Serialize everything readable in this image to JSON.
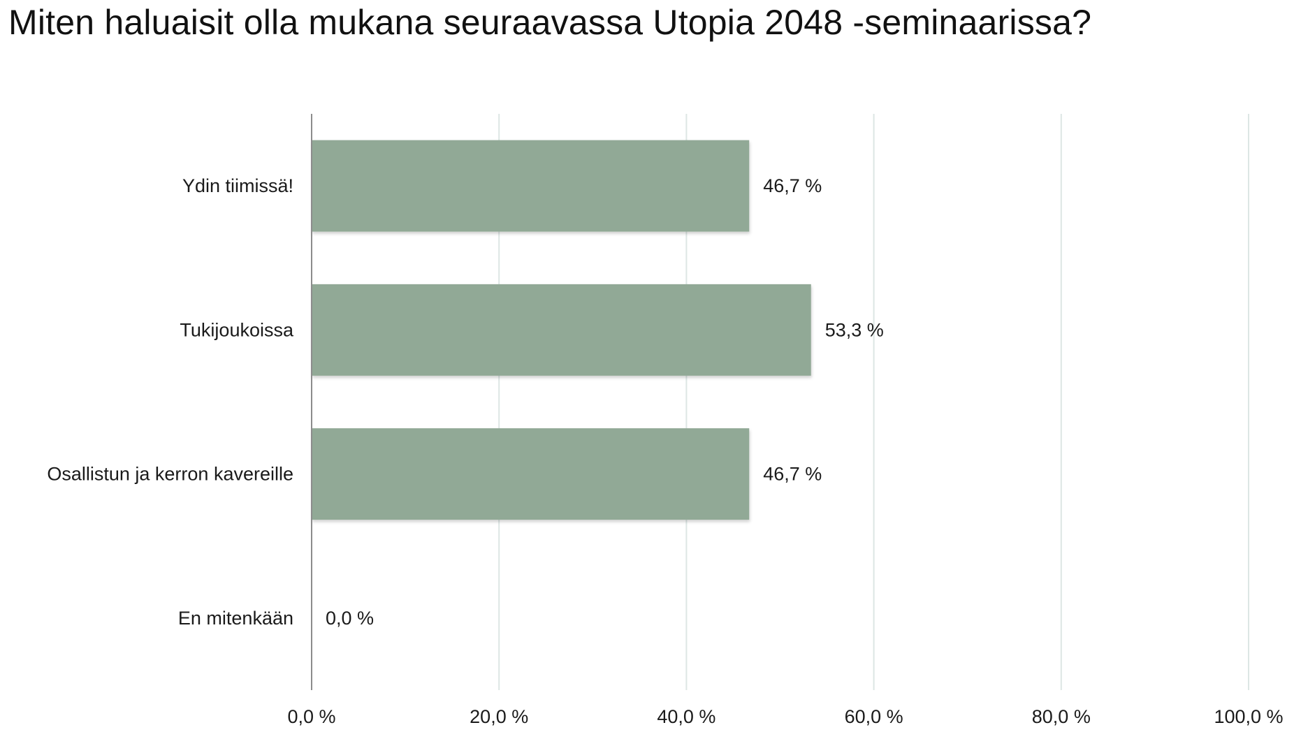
{
  "chart_data": {
    "type": "bar",
    "orientation": "horizontal",
    "title": "Miten haluaisit olla mukana seuraavassa Utopia 2048 -seminaarissa?",
    "categories": [
      "Ydin tiimissä!",
      "Tukijoukoissa",
      "Osallistun ja kerron kavereille",
      "En mitenkään"
    ],
    "values": [
      46.7,
      53.3,
      46.7,
      0.0
    ],
    "value_labels": [
      "46,7 %",
      "53,3 %",
      "46,7 %",
      "0,0 %"
    ],
    "xlim": [
      0,
      100
    ],
    "ticks": [
      0,
      20,
      40,
      60,
      80,
      100
    ],
    "tick_labels": [
      "0,0 %",
      "20,0 %",
      "40,0 %",
      "60,0 %",
      "80,0 %",
      "100,0 %"
    ],
    "grid": "vertical",
    "legend": "none",
    "bar_color": "#91a996",
    "grid_color": "#dde6e4",
    "axis_color": "#8c8c8c"
  }
}
